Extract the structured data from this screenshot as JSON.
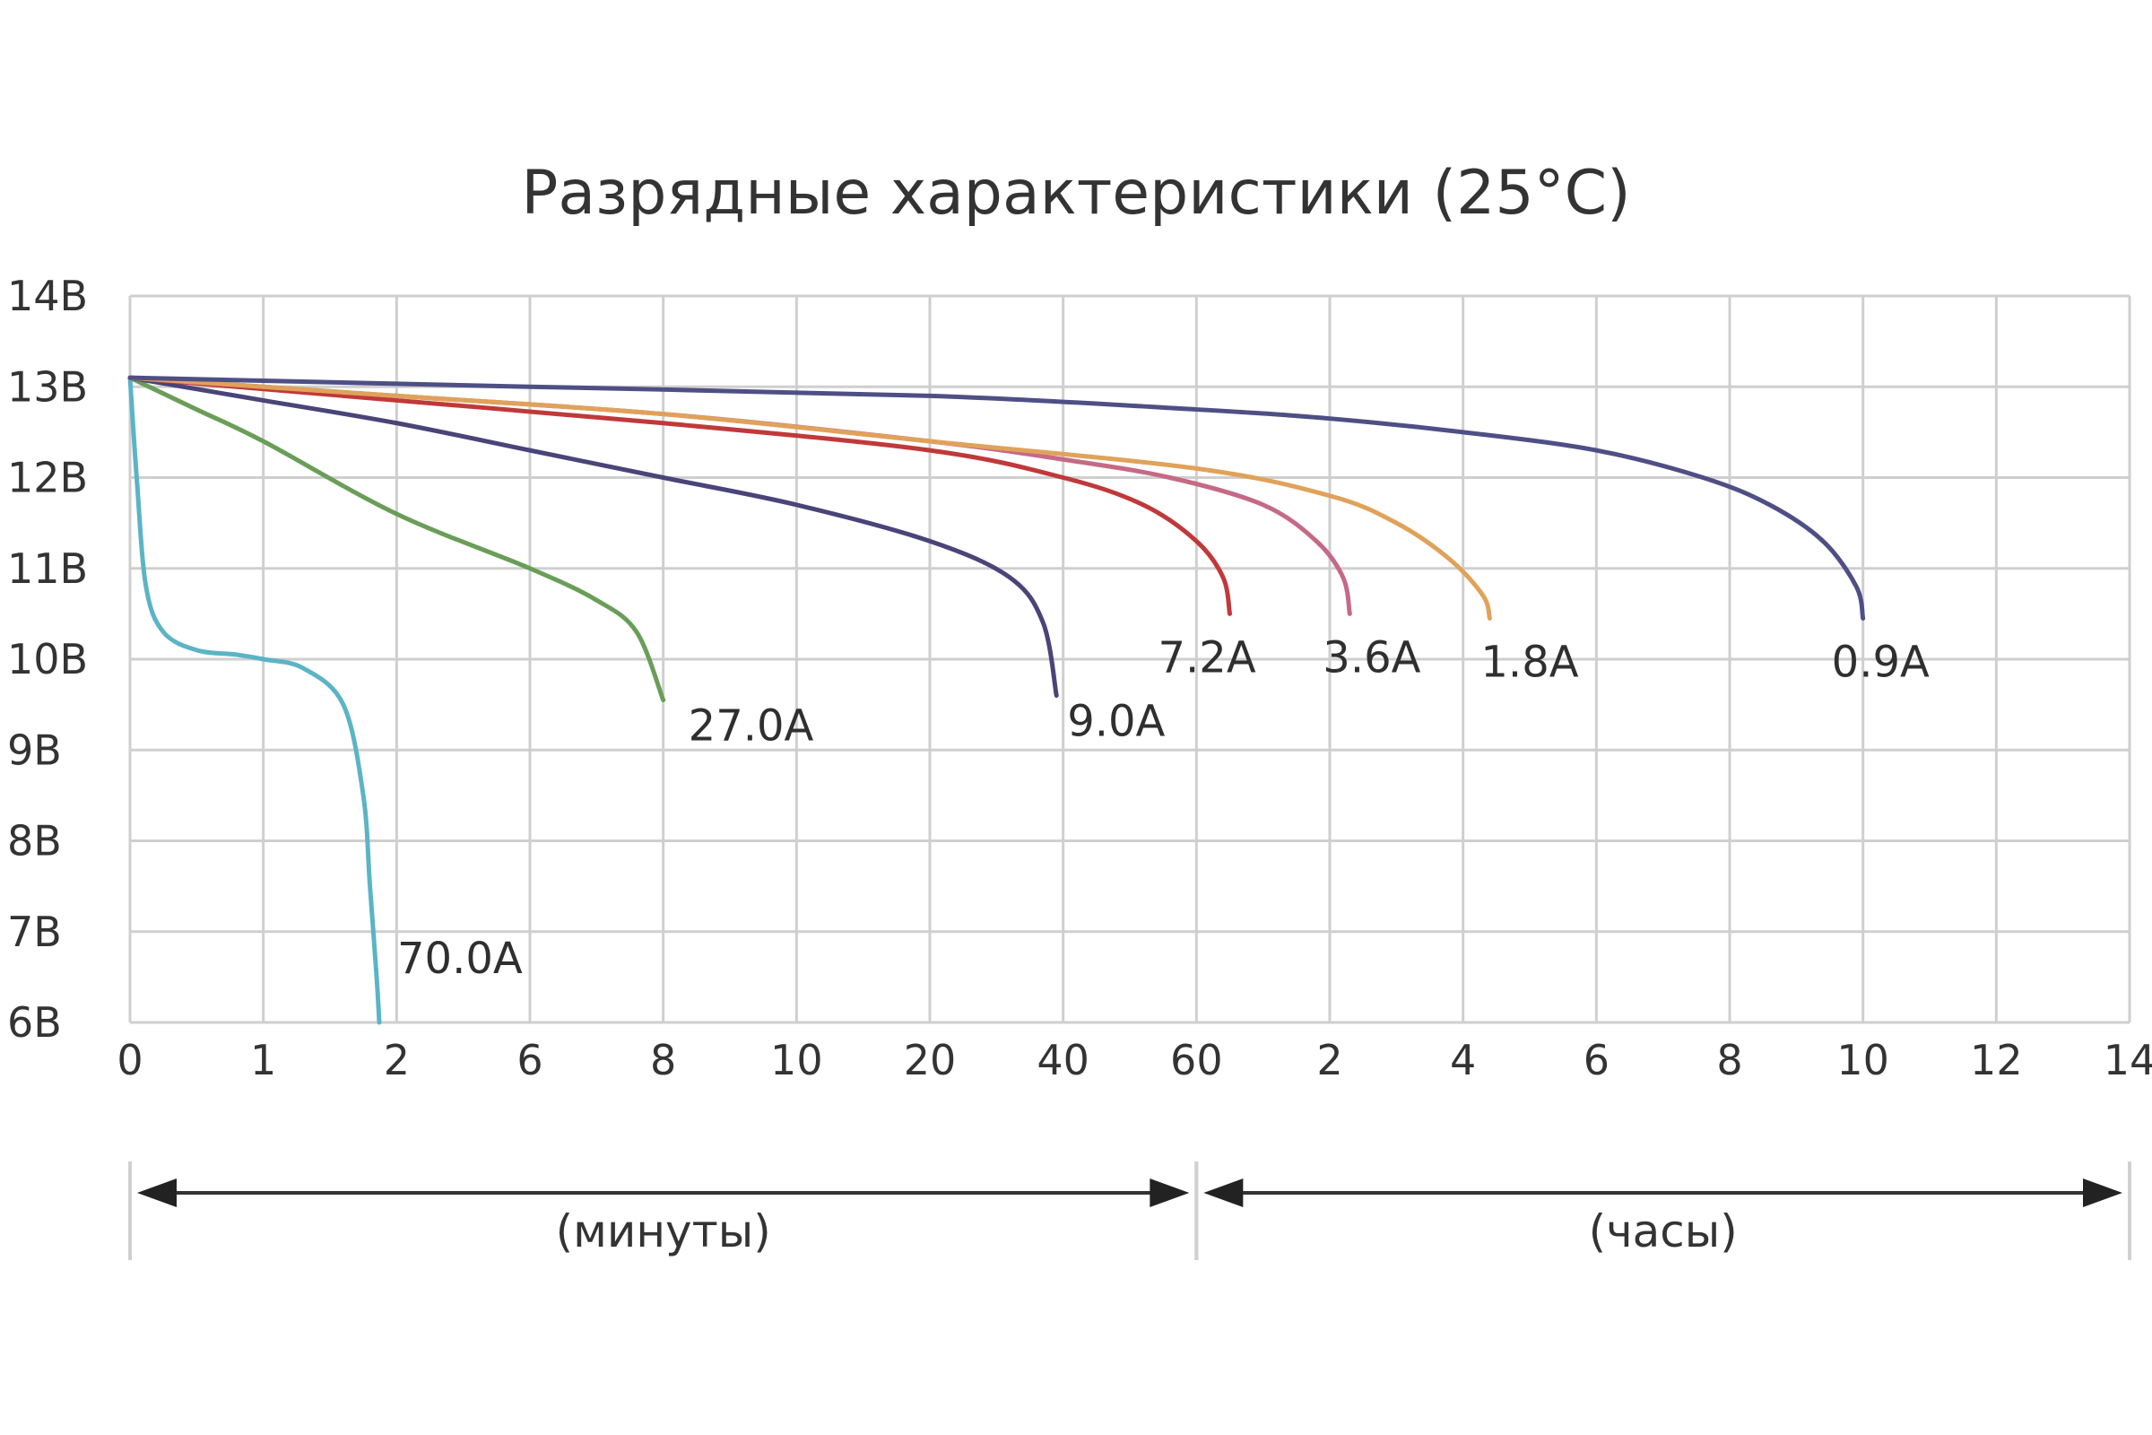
{
  "chart_data": {
    "type": "line",
    "title": "Разрядные характеристики (25°C)",
    "xlabel": "",
    "ylabel": "",
    "ylim": [
      6,
      14
    ],
    "grid": true,
    "y_ticks": [
      {
        "value": 14,
        "label": "14В"
      },
      {
        "value": 13,
        "label": "13В"
      },
      {
        "value": 12,
        "label": "12В"
      },
      {
        "value": 11,
        "label": "11В"
      },
      {
        "value": 10,
        "label": "10В"
      },
      {
        "value": 9,
        "label": "9В"
      },
      {
        "value": 8,
        "label": "8В"
      },
      {
        "value": 7,
        "label": "7В"
      },
      {
        "value": 6,
        "label": "6В"
      }
    ],
    "x_ticks": [
      {
        "value": 0,
        "label": "0"
      },
      {
        "value": 1,
        "label": "1"
      },
      {
        "value": 2,
        "label": "2"
      },
      {
        "value": 3,
        "label": "6"
      },
      {
        "value": 4,
        "label": "8"
      },
      {
        "value": 5,
        "label": "10"
      },
      {
        "value": 6,
        "label": "20"
      },
      {
        "value": 7,
        "label": "40"
      },
      {
        "value": 8,
        "label": "60"
      },
      {
        "value": 9,
        "label": "2"
      },
      {
        "value": 10,
        "label": "4"
      },
      {
        "value": 11,
        "label": "6"
      },
      {
        "value": 12,
        "label": "8"
      },
      {
        "value": 13,
        "label": "10"
      },
      {
        "value": 14,
        "label": "12"
      },
      {
        "value": 15,
        "label": "14"
      }
    ],
    "periods": [
      {
        "label": "(минуты)",
        "from": 0,
        "to": 8
      },
      {
        "label": "(часы)",
        "from": 8,
        "to": 15
      }
    ],
    "series": [
      {
        "name": "70.0A",
        "color": "#5bb4c6",
        "x": [
          0,
          0.05,
          0.12,
          0.25,
          0.5,
          0.8,
          1.0,
          1.3,
          1.6,
          1.75,
          1.8,
          1.85,
          1.87
        ],
        "y": [
          13.1,
          12.0,
          10.8,
          10.3,
          10.1,
          10.05,
          10.0,
          9.9,
          9.5,
          8.5,
          7.5,
          6.5,
          6.0
        ]
      },
      {
        "name": "27.0A",
        "color": "#6a9e58",
        "x": [
          0,
          0.5,
          1,
          2,
          3,
          3.5,
          3.8,
          4.0
        ],
        "y": [
          13.1,
          12.75,
          12.4,
          11.6,
          11.0,
          10.65,
          10.3,
          9.55
        ]
      },
      {
        "name": "9.0A",
        "color": "#4a4478",
        "x": [
          0,
          1,
          2,
          3,
          4,
          5,
          6,
          6.6,
          6.85,
          6.95
        ],
        "y": [
          13.1,
          12.85,
          12.6,
          12.3,
          12.0,
          11.7,
          11.3,
          10.9,
          10.4,
          9.6
        ]
      },
      {
        "name": "7.2A",
        "color": "#c0393a",
        "x": [
          0,
          2,
          4,
          6,
          7,
          7.6,
          8.0,
          8.2,
          8.25
        ],
        "y": [
          13.1,
          12.85,
          12.6,
          12.3,
          12.0,
          11.7,
          11.3,
          10.9,
          10.5
        ]
      },
      {
        "name": "3.6A",
        "color": "#c56a86",
        "x": [
          0,
          2,
          4,
          6,
          7,
          7.8,
          8.5,
          8.9,
          9.1,
          9.15
        ],
        "y": [
          13.1,
          12.9,
          12.7,
          12.4,
          12.2,
          12.0,
          11.7,
          11.3,
          10.9,
          10.5
        ]
      },
      {
        "name": "1.8A",
        "color": "#e0a25a",
        "x": [
          0,
          2,
          4,
          6,
          8,
          9,
          9.5,
          9.9,
          10.15,
          10.2
        ],
        "y": [
          13.1,
          12.9,
          12.7,
          12.4,
          12.1,
          11.8,
          11.5,
          11.1,
          10.7,
          10.45
        ]
      },
      {
        "name": "0.9A",
        "color": "#4f4f86",
        "x": [
          0,
          3,
          6,
          8,
          9,
          10,
          11,
          11.8,
          12.3,
          12.7,
          12.95,
          13.0
        ],
        "y": [
          13.1,
          13.0,
          12.9,
          12.75,
          12.65,
          12.5,
          12.3,
          12.0,
          11.7,
          11.3,
          10.8,
          10.45
        ]
      }
    ]
  }
}
